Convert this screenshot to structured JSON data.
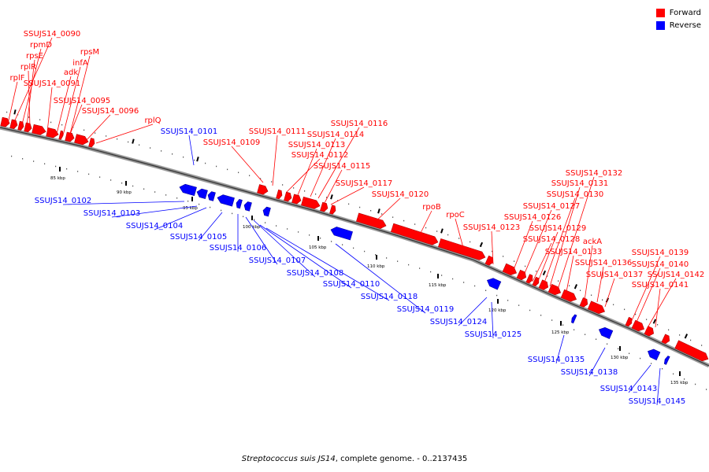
{
  "legend": {
    "forward": {
      "label": "Forward",
      "color": "#ff0000"
    },
    "reverse": {
      "label": "Reverse",
      "color": "#0000ff"
    }
  },
  "caption": {
    "organism": "Streptococcus suis JS14",
    "rest": ", complete genome. - 0..2137435"
  },
  "scale": {
    "unit": "kbp",
    "ticks": [
      "85 kbp",
      "90 kbp",
      "95 kbp",
      "100 kbp",
      "105 kbp",
      "110 kbp",
      "115 kbp",
      "120 kbp",
      "125 kbp",
      "130 kbp",
      "135 kbp"
    ]
  },
  "genes": {
    "forward": [
      "SSUJS14_0090",
      "rpmD",
      "rpsE",
      "rplR",
      "rplF",
      "SSUJS14_0091",
      "adk",
      "infA",
      "rpsM",
      "SSUJS14_0095",
      "SSUJS14_0096",
      "rplQ",
      "SSUJS14_0109",
      "SSUJS14_0111",
      "SSUJS14_0112",
      "SSUJS14_0113",
      "SSUJS14_0114",
      "SSUJS14_0116",
      "SSUJS14_0115",
      "SSUJS14_0117",
      "SSUJS14_0120",
      "rpoB",
      "rpoC",
      "SSUJS14_0123",
      "SSUJS14_0126",
      "SSUJS14_0127",
      "SSUJS14_0128",
      "SSUJS14_0129",
      "SSUJS14_0130",
      "SSUJS14_0131",
      "SSUJS14_0132",
      "ackA",
      "SSUJS14_0133",
      "SSUJS14_0136",
      "SSUJS14_0137",
      "SSUJS14_0139",
      "SSUJS14_0140",
      "SSUJS14_0142",
      "SSUJS14_0141"
    ],
    "reverse": [
      "SSUJS14_0101",
      "SSUJS14_0102",
      "SSUJS14_0103",
      "SSUJS14_0104",
      "SSUJS14_0105",
      "SSUJS14_0106",
      "SSUJS14_0107",
      "SSUJS14_0108",
      "SSUJS14_0110",
      "SSUJS14_0118",
      "SSUJS14_0119",
      "SSUJS14_0124",
      "SSUJS14_0125",
      "SSUJS14_0135",
      "SSUJS14_0138",
      "SSUJS14_0143",
      "SSUJS14_0145"
    ]
  }
}
